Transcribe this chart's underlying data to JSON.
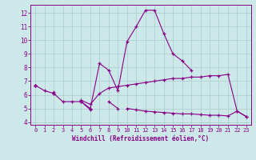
{
  "xlabel": "Windchill (Refroidissement éolien,°C)",
  "background_color": "#cce8e8",
  "grid_color": "#aacccc",
  "line_color": "#880088",
  "x": [
    0,
    1,
    2,
    3,
    4,
    5,
    6,
    7,
    8,
    9,
    10,
    11,
    12,
    13,
    14,
    15,
    16,
    17,
    18,
    19,
    20,
    21,
    22,
    23
  ],
  "line1": [
    6.7,
    6.3,
    6.1,
    5.5,
    5.5,
    5.5,
    5.0,
    8.3,
    7.8,
    6.3,
    9.9,
    11.0,
    12.2,
    12.2,
    10.5,
    9.0,
    8.5,
    7.8,
    null,
    null,
    null,
    null,
    null,
    null
  ],
  "line2": [
    6.7,
    null,
    6.1,
    null,
    null,
    5.5,
    4.9,
    null,
    5.5,
    5.0,
    null,
    null,
    null,
    null,
    null,
    null,
    null,
    null,
    null,
    null,
    null,
    null,
    null,
    null
  ],
  "line3": [
    6.7,
    null,
    6.2,
    null,
    null,
    5.6,
    5.3,
    6.1,
    6.5,
    6.6,
    6.7,
    6.8,
    6.9,
    7.0,
    7.1,
    7.2,
    7.2,
    7.3,
    7.3,
    7.4,
    7.4,
    7.5,
    4.8,
    4.4
  ],
  "line4": [
    6.7,
    null,
    null,
    null,
    null,
    null,
    null,
    null,
    null,
    null,
    5.0,
    4.9,
    4.8,
    4.75,
    4.7,
    4.65,
    4.6,
    4.6,
    4.55,
    4.5,
    4.5,
    4.45,
    4.8,
    4.4
  ],
  "xlim": [
    -0.5,
    23.5
  ],
  "ylim": [
    3.8,
    12.6
  ],
  "yticks": [
    4,
    5,
    6,
    7,
    8,
    9,
    10,
    11,
    12
  ],
  "xticks": [
    0,
    1,
    2,
    3,
    4,
    5,
    6,
    7,
    8,
    9,
    10,
    11,
    12,
    13,
    14,
    15,
    16,
    17,
    18,
    19,
    20,
    21,
    22,
    23
  ]
}
